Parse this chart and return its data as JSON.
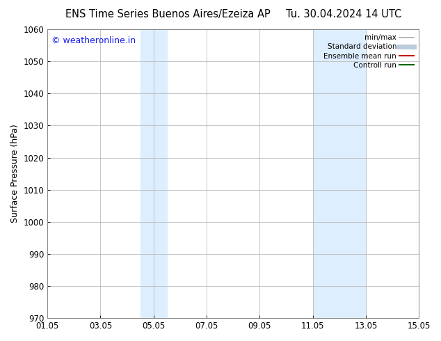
{
  "title_left": "ENS Time Series Buenos Aires/Ezeiza AP",
  "title_right": "Tu. 30.04.2024 14 UTC",
  "ylabel": "Surface Pressure (hPa)",
  "ylim": [
    970,
    1060
  ],
  "yticks": [
    970,
    980,
    990,
    1000,
    1010,
    1020,
    1030,
    1040,
    1050,
    1060
  ],
  "xlim_start": 0,
  "xlim_end": 14,
  "xtick_labels": [
    "01.05",
    "03.05",
    "05.05",
    "07.05",
    "09.05",
    "11.05",
    "13.05",
    "15.05"
  ],
  "xtick_positions": [
    0,
    2,
    4,
    6,
    8,
    10,
    12,
    14
  ],
  "shaded_bands": [
    {
      "start": 3.5,
      "end": 4.5
    },
    {
      "start": 10.0,
      "end": 12.0
    }
  ],
  "shade_color": "#ddeeff",
  "watermark_text": "© weatheronline.in",
  "watermark_color": "#1a1aee",
  "legend_entries": [
    {
      "label": "min/max",
      "color": "#aaaaaa",
      "lw": 1.2,
      "style": "line"
    },
    {
      "label": "Standard deviation",
      "color": "#bbccdd",
      "lw": 5,
      "style": "thick"
    },
    {
      "label": "Ensemble mean run",
      "color": "#cc0000",
      "lw": 1.5,
      "style": "line"
    },
    {
      "label": "Controll run",
      "color": "#006600",
      "lw": 1.5,
      "style": "line"
    }
  ],
  "bg_color": "#ffffff",
  "grid_color": "#bbbbbb",
  "title_fontsize": 10.5,
  "tick_fontsize": 8.5,
  "ylabel_fontsize": 9,
  "watermark_fontsize": 9
}
